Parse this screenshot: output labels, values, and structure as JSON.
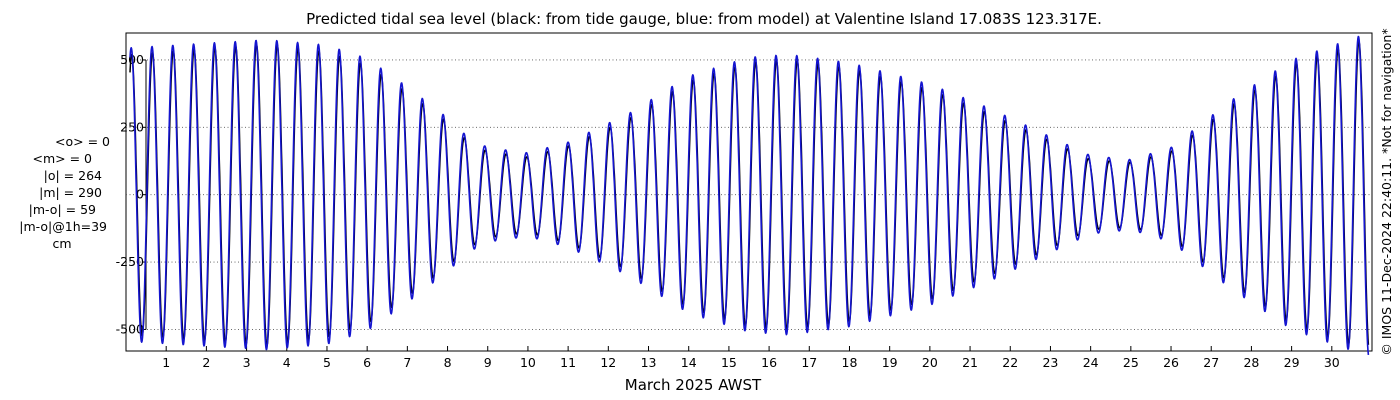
{
  "chart_data": {
    "type": "line",
    "title": "Predicted tidal sea level (black: from tide gauge, blue: from model) at Valentine Island 17.083S 123.317E.",
    "xlabel": "March 2025 AWST",
    "ylabel": "",
    "x_unit": "day of March 2025",
    "xlim": [
      0,
      31
    ],
    "ylim": [
      -580,
      600
    ],
    "x_ticks": [
      1,
      2,
      3,
      4,
      5,
      6,
      7,
      8,
      9,
      10,
      11,
      12,
      13,
      14,
      15,
      16,
      17,
      18,
      19,
      20,
      21,
      22,
      23,
      24,
      25,
      26,
      27,
      28,
      29,
      30
    ],
    "y_ticks": [
      -500,
      -250,
      0,
      250,
      500
    ],
    "grid": "dotted horizontal",
    "legend": "none",
    "series": [
      {
        "color": "#000000",
        "envelope_x": [
          0.1,
          1.8,
          3.5,
          5.0,
          6.0,
          7.0,
          8.0,
          8.5,
          9.0,
          10.0,
          11.0,
          12.5,
          14.0,
          15.5,
          16.5,
          18.0,
          20.0,
          21.5,
          23.0,
          24.0,
          25.0,
          26.0,
          27.5,
          29.0,
          30.9
        ],
        "envelope_amplitude": [
          520,
          540,
          560,
          530,
          480,
          380,
          270,
          200,
          160,
          140,
          180,
          280,
          420,
          490,
          500,
          470,
          390,
          300,
          200,
          130,
          120,
          160,
          330,
          480,
          580
        ]
      },
      {
        "color": "#1515d0",
        "envelope_x": [
          0.1,
          1.8,
          3.5,
          5.0,
          6.0,
          7.0,
          8.0,
          8.5,
          9.0,
          10.0,
          11.0,
          12.5,
          14.0,
          15.5,
          16.5,
          18.0,
          20.0,
          21.5,
          23.0,
          24.0,
          25.0,
          26.0,
          27.5,
          29.0,
          30.9
        ],
        "envelope_amplitude": [
          545,
          560,
          575,
          555,
          505,
          400,
          285,
          215,
          175,
          155,
          195,
          300,
          440,
          510,
          520,
          490,
          410,
          320,
          215,
          145,
          130,
          175,
          350,
          500,
          600
        ]
      }
    ],
    "stats_lines": [
      "<o> = 0",
      "<m> = 0",
      "|o| = 264",
      "|m| = 290",
      "|m-o| = 59",
      "|m-o|@1h=39",
      "cm"
    ],
    "copyright": "© IMOS 11-Dec-2024 22:40:11. *Not for navigation*"
  }
}
